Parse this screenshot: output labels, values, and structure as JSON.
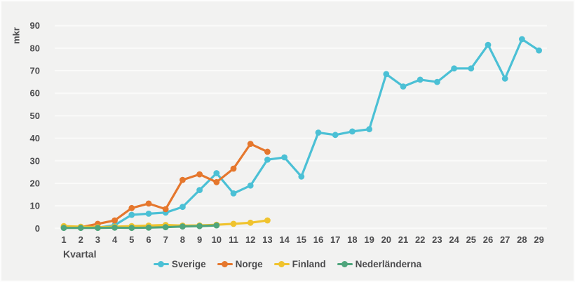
{
  "page": {
    "background": "#f2f2f1",
    "text_color": "#4c4c4e",
    "grid_color": "#fafaf9"
  },
  "chart_data": {
    "type": "line",
    "title": "",
    "xlabel": "Kvartal",
    "ylabel": "mkr",
    "x": [
      1,
      2,
      3,
      4,
      5,
      6,
      7,
      8,
      9,
      10,
      11,
      12,
      13,
      14,
      15,
      16,
      17,
      18,
      19,
      20,
      21,
      22,
      23,
      24,
      25,
      26,
      27,
      28,
      29
    ],
    "ylim": [
      0,
      90
    ],
    "yticks": [
      0,
      10,
      20,
      30,
      40,
      50,
      60,
      70,
      80,
      90
    ],
    "grid": "horizontal",
    "legend_position": "bottom-center",
    "series": [
      {
        "name": "Sverige",
        "color": "#4bc0d5",
        "values": [
          0.5,
          0.3,
          0.3,
          1.4,
          6,
          6.5,
          7,
          9.5,
          17,
          24.5,
          15.5,
          19,
          30.5,
          31.5,
          23,
          42.5,
          41.5,
          43,
          44,
          68.5,
          63,
          66,
          65,
          71,
          71,
          81.5,
          66.5,
          84,
          79
        ]
      },
      {
        "name": "Norge",
        "color": "#e5772d",
        "values": [
          0.3,
          0.5,
          2,
          3.5,
          9,
          11,
          8.5,
          21.5,
          24,
          20.5,
          26.5,
          37.5,
          34,
          null,
          null,
          null,
          null,
          null,
          null,
          null,
          null,
          null,
          null,
          null,
          null,
          null,
          null,
          null,
          null
        ]
      },
      {
        "name": "Finland",
        "color": "#f0c32e",
        "values": [
          1,
          0.7,
          0.5,
          0.7,
          1,
          1.2,
          1.5,
          1.2,
          1.3,
          1.6,
          2,
          2.5,
          3.5,
          null,
          null,
          null,
          null,
          null,
          null,
          null,
          null,
          null,
          null,
          null,
          null,
          null,
          null,
          null,
          null
        ]
      },
      {
        "name": "Nederländerna",
        "color": "#4fa57c",
        "values": [
          0.2,
          0.2,
          0.2,
          0.3,
          0.2,
          0.3,
          0.5,
          0.8,
          1,
          1.3,
          null,
          null,
          null,
          null,
          null,
          null,
          null,
          null,
          null,
          null,
          null,
          null,
          null,
          null,
          null,
          null,
          null,
          null,
          null
        ]
      }
    ]
  }
}
